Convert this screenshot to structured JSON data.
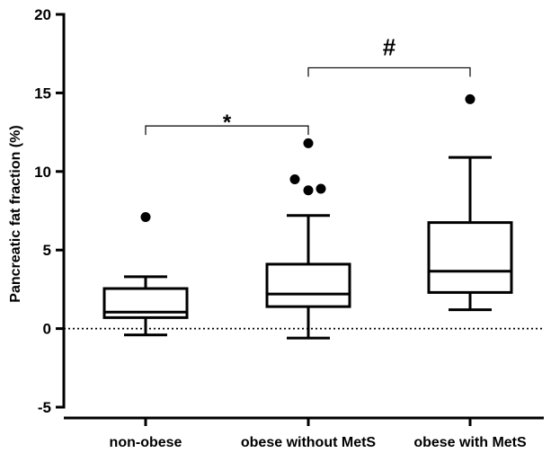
{
  "chart_data": {
    "type": "boxplot",
    "ylabel": "Pancreatic fat fraction (%)",
    "ylim": [
      -5,
      20
    ],
    "yticks": [
      -5,
      0,
      5,
      10,
      15,
      20
    ],
    "categories": [
      "non-obese",
      "obese without MetS",
      "obese with MetS"
    ],
    "boxes": [
      {
        "category": "non-obese",
        "whisker_low": -0.4,
        "q1": 0.7,
        "median": 1.05,
        "q3": 2.55,
        "whisker_high": 3.3,
        "outliers": [
          7.1
        ]
      },
      {
        "category": "obese without MetS",
        "whisker_low": -0.6,
        "q1": 1.4,
        "median": 2.2,
        "q3": 4.1,
        "whisker_high": 7.2,
        "outliers": [
          8.8,
          8.9,
          9.5,
          11.8
        ]
      },
      {
        "category": "obese with MetS",
        "whisker_low": 1.2,
        "q1": 2.3,
        "median": 3.65,
        "q3": 6.75,
        "whisker_high": 10.9,
        "outliers": [
          14.6
        ]
      }
    ],
    "reference_line": {
      "y": 0,
      "style": "dotted"
    },
    "significance": [
      {
        "from": "non-obese",
        "to": "obese without MetS",
        "label": "*",
        "y": 12.9
      },
      {
        "from": "obese without MetS",
        "to": "obese with MetS",
        "label": "#",
        "y": 16.6
      }
    ],
    "grid": false,
    "legend": "none"
  }
}
